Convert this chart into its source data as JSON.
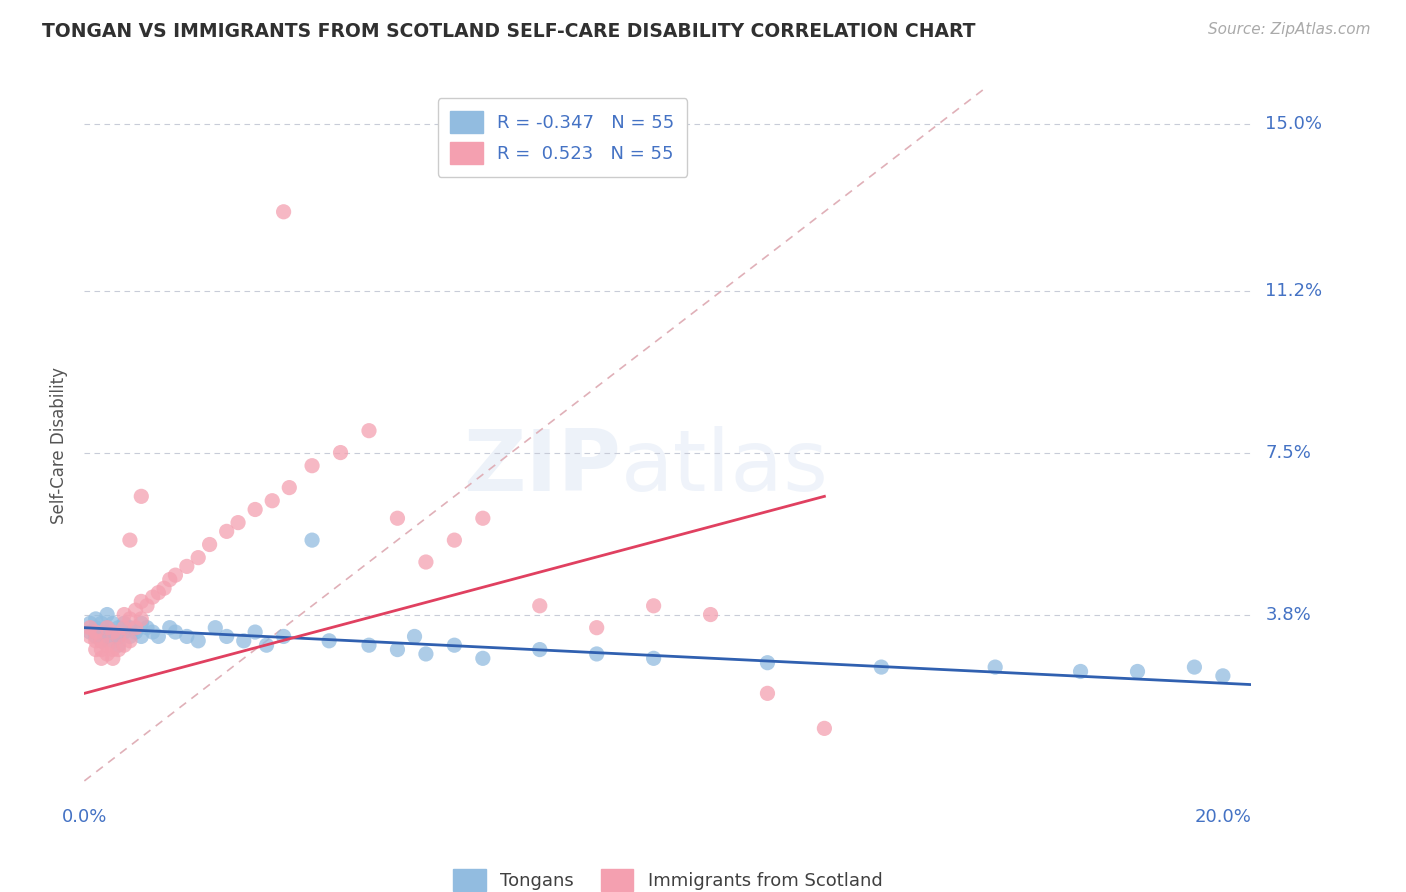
{
  "title": "TONGAN VS IMMIGRANTS FROM SCOTLAND SELF-CARE DISABILITY CORRELATION CHART",
  "source": "Source: ZipAtlas.com",
  "ylabel": "Self-Care Disability",
  "xlim": [
    0.0,
    0.205
  ],
  "ylim": [
    -0.005,
    0.158
  ],
  "ytick_vals": [
    0.0,
    0.038,
    0.075,
    0.112,
    0.15
  ],
  "ytick_labels": [
    "",
    "3.8%",
    "7.5%",
    "11.2%",
    "15.0%"
  ],
  "xtick_vals": [
    0.0,
    0.05,
    0.1,
    0.15,
    0.2
  ],
  "xtick_labels": [
    "0.0%",
    "",
    "",
    "",
    "20.0%"
  ],
  "r_tongan": -0.347,
  "r_scotland": 0.523,
  "n_tongan": 55,
  "n_scotland": 55,
  "color_tongan": "#92bce0",
  "color_scotland": "#f4a0b0",
  "color_trendline_tongan": "#3060b0",
  "color_trendline_scotland": "#e04060",
  "color_refline": "#e0b0b8",
  "color_axis_labels": "#4472C4",
  "color_title": "#303030",
  "bg": "#ffffff",
  "tongan_x": [
    0.001,
    0.001,
    0.002,
    0.002,
    0.002,
    0.003,
    0.003,
    0.003,
    0.004,
    0.004,
    0.004,
    0.005,
    0.005,
    0.005,
    0.006,
    0.006,
    0.006,
    0.007,
    0.007,
    0.008,
    0.008,
    0.009,
    0.01,
    0.01,
    0.011,
    0.012,
    0.013,
    0.015,
    0.016,
    0.018,
    0.02,
    0.023,
    0.025,
    0.028,
    0.03,
    0.032,
    0.035,
    0.04,
    0.043,
    0.05,
    0.055,
    0.058,
    0.06,
    0.065,
    0.07,
    0.08,
    0.09,
    0.1,
    0.12,
    0.14,
    0.16,
    0.175,
    0.185,
    0.195,
    0.2
  ],
  "tongan_y": [
    0.034,
    0.036,
    0.033,
    0.035,
    0.037,
    0.032,
    0.034,
    0.036,
    0.033,
    0.035,
    0.038,
    0.032,
    0.034,
    0.036,
    0.031,
    0.033,
    0.035,
    0.034,
    0.036,
    0.033,
    0.035,
    0.034,
    0.033,
    0.036,
    0.035,
    0.034,
    0.033,
    0.035,
    0.034,
    0.033,
    0.032,
    0.035,
    0.033,
    0.032,
    0.034,
    0.031,
    0.033,
    0.055,
    0.032,
    0.031,
    0.03,
    0.033,
    0.029,
    0.031,
    0.028,
    0.03,
    0.029,
    0.028,
    0.027,
    0.026,
    0.026,
    0.025,
    0.025,
    0.026,
    0.024
  ],
  "scotland_x": [
    0.001,
    0.001,
    0.002,
    0.002,
    0.002,
    0.003,
    0.003,
    0.003,
    0.004,
    0.004,
    0.004,
    0.005,
    0.005,
    0.005,
    0.006,
    0.006,
    0.007,
    0.007,
    0.007,
    0.008,
    0.008,
    0.009,
    0.009,
    0.01,
    0.01,
    0.011,
    0.012,
    0.013,
    0.014,
    0.015,
    0.016,
    0.018,
    0.02,
    0.022,
    0.025,
    0.027,
    0.03,
    0.033,
    0.036,
    0.04,
    0.045,
    0.05,
    0.055,
    0.06,
    0.065,
    0.07,
    0.08,
    0.09,
    0.1,
    0.11,
    0.12,
    0.13,
    0.035,
    0.01,
    0.008
  ],
  "scotland_y": [
    0.033,
    0.035,
    0.03,
    0.032,
    0.034,
    0.028,
    0.03,
    0.032,
    0.029,
    0.031,
    0.035,
    0.028,
    0.03,
    0.034,
    0.03,
    0.033,
    0.031,
    0.035,
    0.038,
    0.032,
    0.037,
    0.035,
    0.039,
    0.037,
    0.041,
    0.04,
    0.042,
    0.043,
    0.044,
    0.046,
    0.047,
    0.049,
    0.051,
    0.054,
    0.057,
    0.059,
    0.062,
    0.064,
    0.067,
    0.072,
    0.075,
    0.08,
    0.06,
    0.05,
    0.055,
    0.06,
    0.04,
    0.035,
    0.04,
    0.038,
    0.02,
    0.012,
    0.13,
    0.065,
    0.055
  ]
}
